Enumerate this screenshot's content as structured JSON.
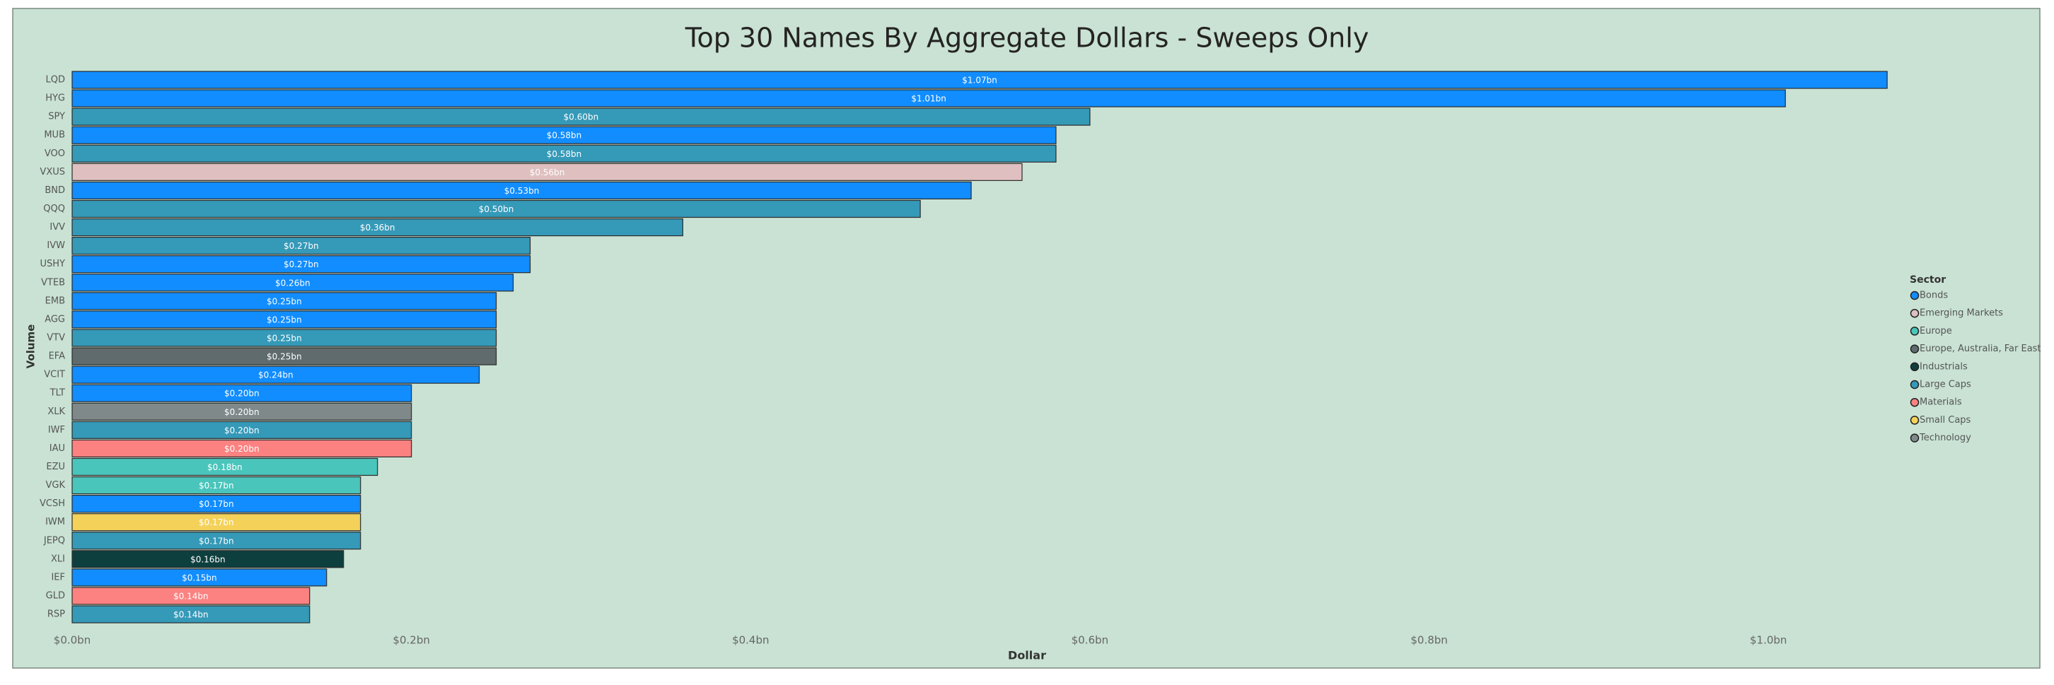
{
  "chart_data": {
    "type": "hbar",
    "title": "Top 30 Names By Aggregate Dollars - Sweeps Only",
    "x_label": "Dollar",
    "y_label": "Volume",
    "categories": [
      "LQD",
      "HYG",
      "SPY",
      "MUB",
      "VOO",
      "VXUS",
      "BND",
      "QQQ",
      "IVV",
      "IVW",
      "USHY",
      "VTEB",
      "EMB",
      "AGG",
      "VTV",
      "EFA",
      "VCIT",
      "TLT",
      "XLK",
      "IWF",
      "IAU",
      "EZU",
      "VGK",
      "VCSH",
      "IWM",
      "JEPQ",
      "XLI",
      "IEF",
      "GLD",
      "RSP"
    ],
    "values": [
      1.07,
      1.01,
      0.6,
      0.58,
      0.58,
      0.56,
      0.53,
      0.5,
      0.36,
      0.27,
      0.27,
      0.26,
      0.25,
      0.25,
      0.25,
      0.25,
      0.24,
      0.2,
      0.2,
      0.2,
      0.2,
      0.18,
      0.17,
      0.17,
      0.17,
      0.17,
      0.16,
      0.15,
      0.14,
      0.14
    ],
    "value_labels": [
      "$1.07bn",
      "$1.01bn",
      "$0.60bn",
      "$0.58bn",
      "$0.58bn",
      "$0.56bn",
      "$0.53bn",
      "$0.50bn",
      "$0.36bn",
      "$0.27bn",
      "$0.27bn",
      "$0.26bn",
      "$0.25bn",
      "$0.25bn",
      "$0.25bn",
      "$0.25bn",
      "$0.24bn",
      "$0.20bn",
      "$0.20bn",
      "$0.20bn",
      "$0.20bn",
      "$0.18bn",
      "$0.17bn",
      "$0.17bn",
      "$0.17bn",
      "$0.17bn",
      "$0.16bn",
      "$0.15bn",
      "$0.14bn",
      "$0.14bn"
    ],
    "bar_colors": [
      "#118DFF",
      "#118DFF",
      "#3599B8",
      "#118DFF",
      "#3599B8",
      "#DFBFBF",
      "#118DFF",
      "#3599B8",
      "#3599B8",
      "#3599B8",
      "#118DFF",
      "#118DFF",
      "#118DFF",
      "#118DFF",
      "#3599B8",
      "#5F6B6D",
      "#118DFF",
      "#118DFF",
      "#7F898A",
      "#3599B8",
      "#FB8281",
      "#4AC5BB",
      "#4AC5BB",
      "#118DFF",
      "#F4D25A",
      "#3599B8",
      "#0E3F3F",
      "#118DFF",
      "#FB8281",
      "#3599B8"
    ],
    "xlim": [
      0,
      1.14
    ],
    "xticks": [
      {
        "value": 0,
        "label": "$0.0bn"
      },
      {
        "value": 0.2,
        "label": "$0.2bn"
      },
      {
        "value": 0.4,
        "label": "$0.4bn"
      },
      {
        "value": 0.6,
        "label": "$0.6bn"
      },
      {
        "value": 0.8,
        "label": "$0.8bn"
      },
      {
        "value": 1.0,
        "label": "$1.0bn"
      }
    ],
    "legend_title": "Sector",
    "legend_position": "right",
    "legend": [
      {
        "name": "Bonds",
        "color": "#118DFF"
      },
      {
        "name": "Emerging Markets",
        "color": "#DFBFBF"
      },
      {
        "name": "Europe",
        "color": "#4AC5BB"
      },
      {
        "name": "Europe, Australia, Far East",
        "color": "#5F6B6D"
      },
      {
        "name": "Industrials",
        "color": "#0E3F3F"
      },
      {
        "name": "Large Caps",
        "color": "#3599B8"
      },
      {
        "name": "Materials",
        "color": "#FB8281"
      },
      {
        "name": "Small Caps",
        "color": "#F4D25A"
      },
      {
        "name": "Technology",
        "color": "#7F898A"
      }
    ]
  }
}
